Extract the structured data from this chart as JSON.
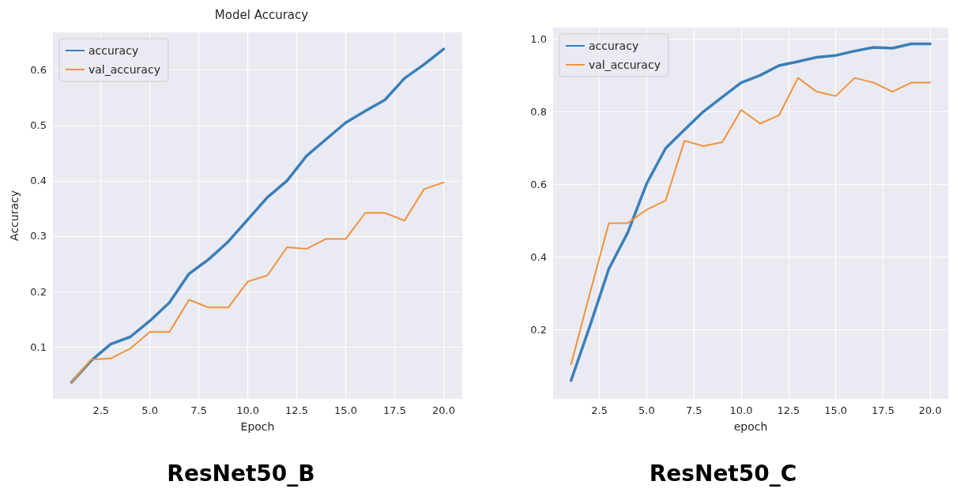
{
  "chart_data": [
    {
      "type": "line",
      "title": "Model Accuracy",
      "xlabel": "Epoch",
      "ylabel": "Accuracy",
      "annotations": [
        "ResNet50_B"
      ],
      "x": [
        1,
        2,
        3,
        4,
        5,
        6,
        7,
        8,
        9,
        10,
        11,
        12,
        13,
        14,
        15,
        16,
        17,
        18,
        19,
        20
      ],
      "series": [
        {
          "name": "accuracy",
          "color": "#3a7fb8",
          "values": [
            0.036,
            0.075,
            0.105,
            0.118,
            0.147,
            0.18,
            0.232,
            0.258,
            0.29,
            0.33,
            0.37,
            0.4,
            0.445,
            0.475,
            0.505,
            0.526,
            0.546,
            0.585,
            0.61,
            0.638
          ]
        },
        {
          "name": "val_accuracy",
          "color": "#f0923a",
          "values": [
            0.036,
            0.077,
            0.079,
            0.097,
            0.127,
            0.127,
            0.185,
            0.171,
            0.171,
            0.218,
            0.229,
            0.28,
            0.277,
            0.295,
            0.295,
            0.342,
            0.342,
            0.328,
            0.385,
            0.397
          ]
        }
      ],
      "xlim": [
        0.05,
        20.95
      ],
      "xticks": [
        2.5,
        {
          "value": 5,
          "label": "5.0"
        },
        7.5,
        {
          "value": 10,
          "label": "10.0"
        },
        12.5,
        {
          "value": 15,
          "label": "15.0"
        },
        17.5,
        {
          "value": 20,
          "label": "20.0"
        }
      ],
      "ylim": [
        0.006,
        0.668
      ],
      "yticks": [
        0.1,
        0.2,
        0.3,
        0.4,
        0.5,
        0.6
      ],
      "grid": true,
      "legend": "top left",
      "marker": "none",
      "line_style": "solid"
    },
    {
      "type": "line",
      "xlabel": "epoch",
      "annotations": [
        "ResNet50_C"
      ],
      "x": [
        1,
        2,
        3,
        4,
        5,
        6,
        7,
        8,
        9,
        10,
        11,
        12,
        13,
        14,
        15,
        16,
        17,
        18,
        19,
        20
      ],
      "series": [
        {
          "name": "accuracy",
          "color": "#3a7fb8",
          "values": [
            0.059,
            0.21,
            0.367,
            0.467,
            0.602,
            0.699,
            0.75,
            0.8,
            0.84,
            0.88,
            0.9,
            0.927,
            0.938,
            0.95,
            0.955,
            0.967,
            0.977,
            0.975,
            0.987,
            0.987
          ]
        },
        {
          "name": "val_accuracy",
          "color": "#f0923a",
          "values": [
            0.104,
            0.3,
            0.493,
            0.493,
            0.53,
            0.555,
            0.72,
            0.705,
            0.716,
            0.805,
            0.767,
            0.79,
            0.893,
            0.855,
            0.843,
            0.893,
            0.88,
            0.855,
            0.88,
            0.88
          ]
        }
      ],
      "xlim": [
        0.05,
        20.95
      ],
      "xticks": [
        2.5,
        {
          "value": 5,
          "label": "5.0"
        },
        7.5,
        {
          "value": 10,
          "label": "10.0"
        },
        12.5,
        {
          "value": 15,
          "label": "15.0"
        },
        17.5,
        {
          "value": 20,
          "label": "20.0"
        }
      ],
      "ylim": [
        0.0085,
        1.0315
      ],
      "yticks": [
        0.2,
        0.4,
        0.6,
        0.8,
        {
          "value": 1,
          "label": "1.0"
        }
      ],
      "grid": true,
      "legend": "top left",
      "marker": "none",
      "line_style": "solid"
    }
  ]
}
